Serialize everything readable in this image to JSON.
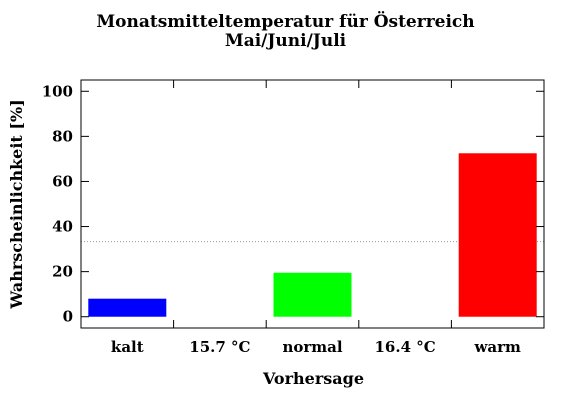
{
  "chart_data": {
    "type": "bar",
    "title_lines": [
      "Monatsmitteltemperatur für Österreich",
      "Mai/Juni/Juli"
    ],
    "xlabel": "Vorhersage",
    "ylabel": "Wahrscheinlichkeit [%]",
    "ylim": [
      -5,
      105
    ],
    "yticks": [
      0,
      20,
      40,
      60,
      80,
      100
    ],
    "grid": false,
    "categories": [
      "kalt",
      "normal",
      "warm"
    ],
    "values": [
      8,
      19.5,
      72.5
    ],
    "colors": [
      "#0000ff",
      "#00ff00",
      "#ff0000"
    ],
    "separator_labels": [
      "15.7 °C",
      "16.4 °C"
    ],
    "reference_line": {
      "value": 33.3,
      "style": "dotted",
      "color": "#999999"
    }
  }
}
